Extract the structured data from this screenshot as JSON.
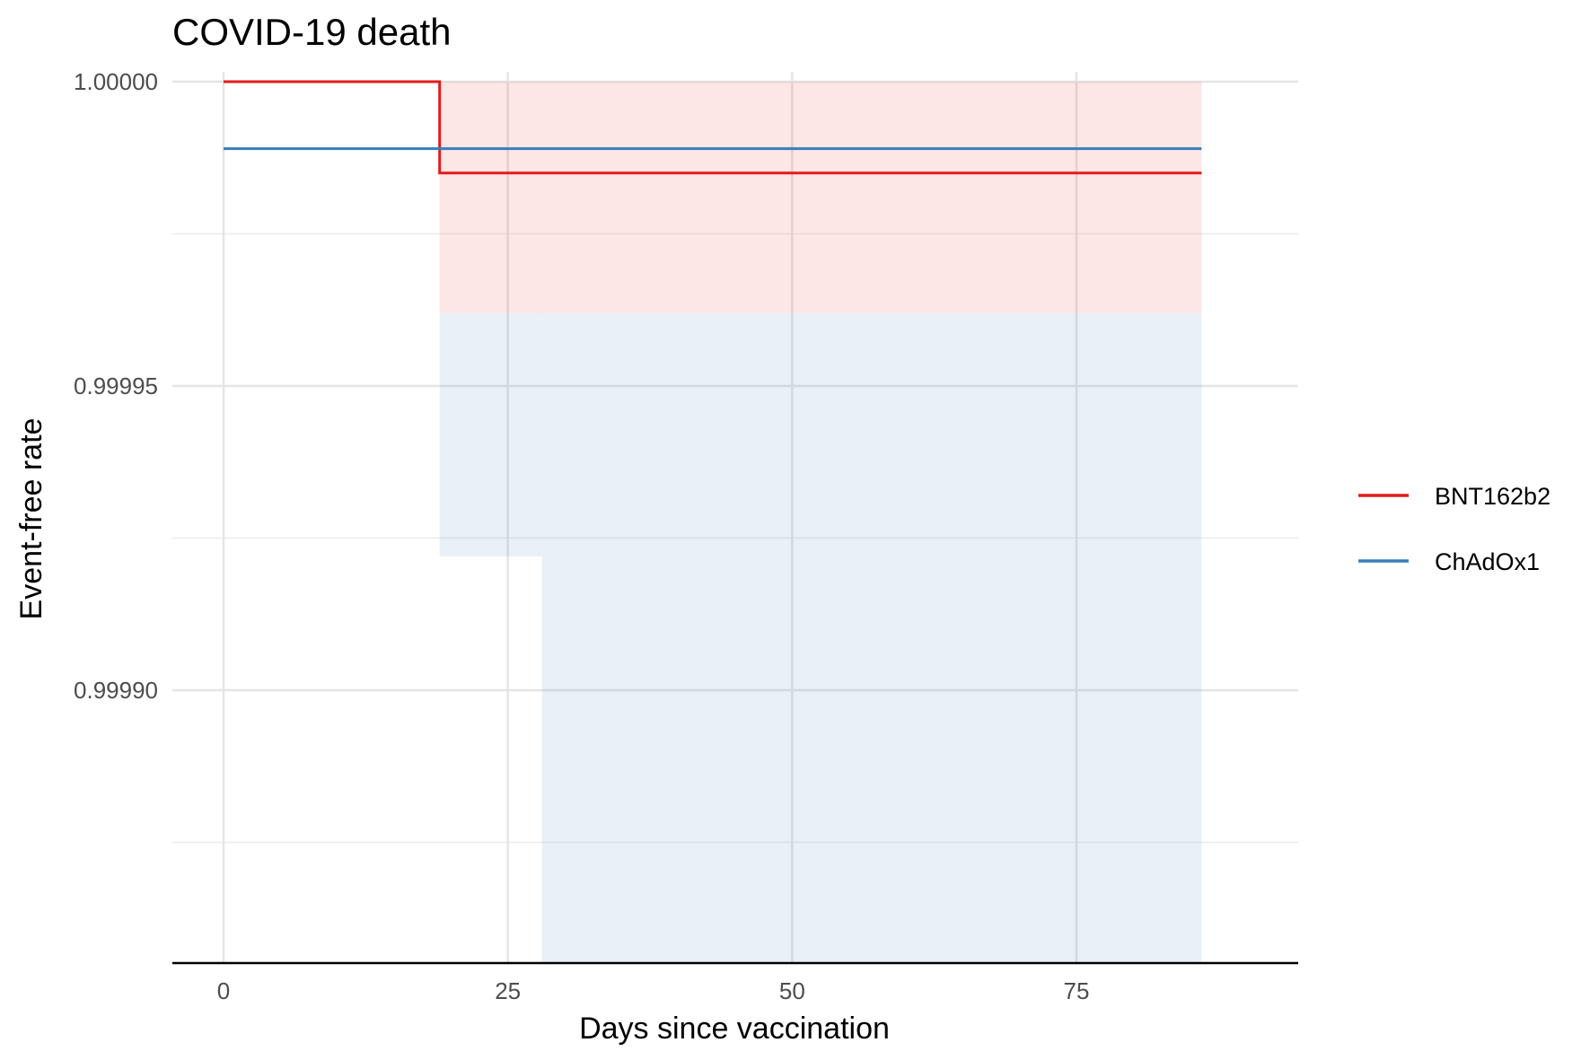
{
  "chart_data": {
    "type": "line",
    "title": "COVID-19 death",
    "xlabel": "Days since vaccination",
    "ylabel": "Event-free rate",
    "xlim": [
      -4.5,
      94.5
    ],
    "ylim": [
      0.999855,
      1.0000013
    ],
    "x_ticks": [
      0,
      25,
      50,
      75
    ],
    "x_tick_labels": [
      "0",
      "25",
      "50",
      "75"
    ],
    "y_ticks": [
      0.9999,
      0.99995,
      1.0
    ],
    "y_tick_labels": [
      "0.99990",
      "0.99995",
      "1.00000"
    ],
    "y_minor_ticks": [
      0.999875,
      0.999925,
      0.999975
    ],
    "grid": true,
    "legend_position": "right",
    "series": [
      {
        "name": "BNT162b2",
        "color": "#e41a1c",
        "step": [
          [
            0,
            1.0
          ],
          [
            19,
            0.999985
          ],
          [
            86,
            0.999985
          ]
        ],
        "ci_band": [
          {
            "x": [
              0,
              19
            ],
            "lower": 1.0,
            "upper": 1.0
          },
          {
            "x": [
              19,
              86
            ],
            "lower": 0.999962,
            "upper": 1.0
          }
        ]
      },
      {
        "name": "ChAdOx1",
        "color": "#377eb8",
        "step": [
          [
            0,
            0.999989
          ],
          [
            86,
            0.999989
          ]
        ],
        "ci_band": [
          {
            "x": [
              19,
              28
            ],
            "lower": 0.999922,
            "upper": 0.999962
          },
          {
            "x": [
              28,
              86
            ],
            "lower": 0.999855,
            "upper": 0.999962
          }
        ]
      }
    ]
  }
}
